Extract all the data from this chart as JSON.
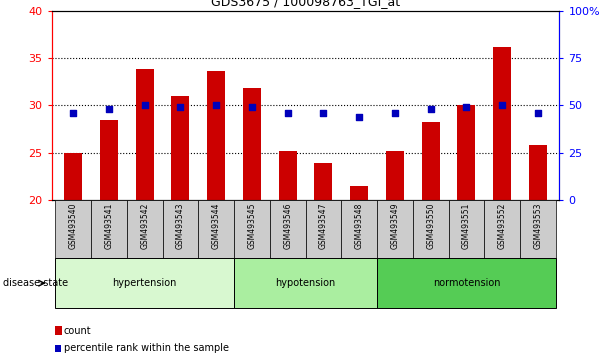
{
  "title": "GDS3675 / 100098763_TGI_at",
  "samples": [
    "GSM493540",
    "GSM493541",
    "GSM493542",
    "GSM493543",
    "GSM493544",
    "GSM493545",
    "GSM493546",
    "GSM493547",
    "GSM493548",
    "GSM493549",
    "GSM493550",
    "GSM493551",
    "GSM493552",
    "GSM493553"
  ],
  "count_values": [
    25.0,
    28.5,
    33.8,
    31.0,
    33.6,
    31.8,
    25.2,
    23.9,
    21.5,
    25.2,
    28.2,
    30.0,
    36.2,
    25.8
  ],
  "percentile_values": [
    46,
    48,
    50,
    49,
    50,
    49,
    46,
    46,
    44,
    46,
    48,
    49,
    50,
    46
  ],
  "ylim_left": [
    20,
    40
  ],
  "ylim_right": [
    0,
    100
  ],
  "yticks_left": [
    20,
    25,
    30,
    35,
    40
  ],
  "yticks_right": [
    0,
    25,
    50,
    75,
    100
  ],
  "bar_color": "#cc0000",
  "dot_color": "#0000bb",
  "groups": [
    {
      "label": "hypertension",
      "start": 0,
      "end": 5,
      "color": "#d8f8d0"
    },
    {
      "label": "hypotension",
      "start": 5,
      "end": 9,
      "color": "#a8eeA0"
    },
    {
      "label": "normotension",
      "start": 9,
      "end": 14,
      "color": "#55cc55"
    }
  ],
  "disease_state_label": "disease state",
  "legend_count_label": "count",
  "legend_percentile_label": "percentile rank within the sample",
  "bar_width": 0.5,
  "baseline": 20,
  "label_area_color": "#cccccc",
  "bg_color": "#ffffff"
}
